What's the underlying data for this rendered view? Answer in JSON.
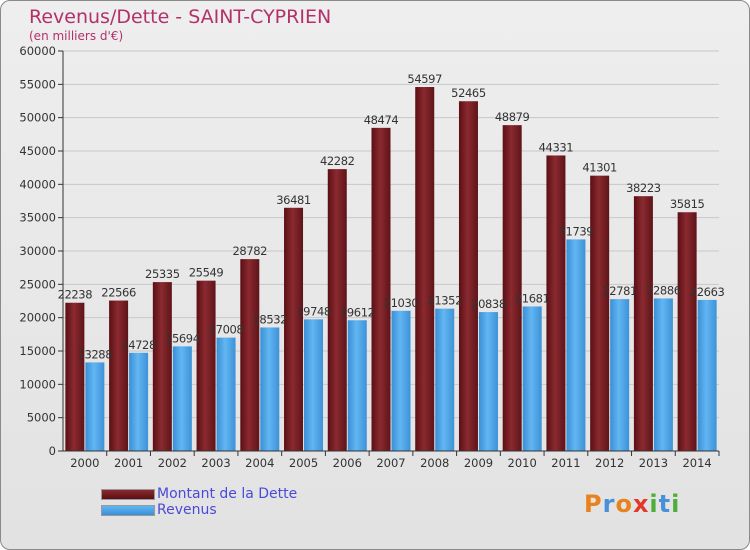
{
  "header": {
    "title": "Revenus/Dette - SAINT-CYPRIEN",
    "subtitle": "(en milliers d'€)"
  },
  "logo": {
    "text": "Proxiti",
    "colors": [
      "#e8821c",
      "#4a90d9",
      "#e8821c",
      "#e23a2a",
      "#4fae3a",
      "#4a90d9",
      "#4fae3a"
    ]
  },
  "chart_data": {
    "type": "bar",
    "title": "Revenus/Dette - SAINT-CYPRIEN",
    "subtitle": "(en milliers d'€)",
    "xlabel": "",
    "ylabel": "",
    "ylim": [
      0,
      60000
    ],
    "yticks": [
      0,
      5000,
      10000,
      15000,
      20000,
      25000,
      30000,
      35000,
      40000,
      45000,
      50000,
      55000,
      60000
    ],
    "grid": true,
    "legend_position": "bottom-left",
    "categories": [
      "2000",
      "2001",
      "2002",
      "2003",
      "2004",
      "2005",
      "2006",
      "2007",
      "2008",
      "2009",
      "2010",
      "2011",
      "2012",
      "2013",
      "2014"
    ],
    "series": [
      {
        "name": "Montant de la Dette",
        "color": "#7a1e24",
        "values": [
          22238,
          22566,
          25335,
          25549,
          28782,
          36481,
          42282,
          48474,
          54597,
          52465,
          48879,
          44331,
          41301,
          38223,
          35815
        ]
      },
      {
        "name": "Revenus",
        "color": "#4aa3e6",
        "values": [
          13288,
          14728,
          15694,
          17008,
          18532,
          19748,
          19612,
          21030,
          21352,
          20838,
          21681,
          31739,
          22781,
          22886,
          22663
        ]
      }
    ]
  }
}
